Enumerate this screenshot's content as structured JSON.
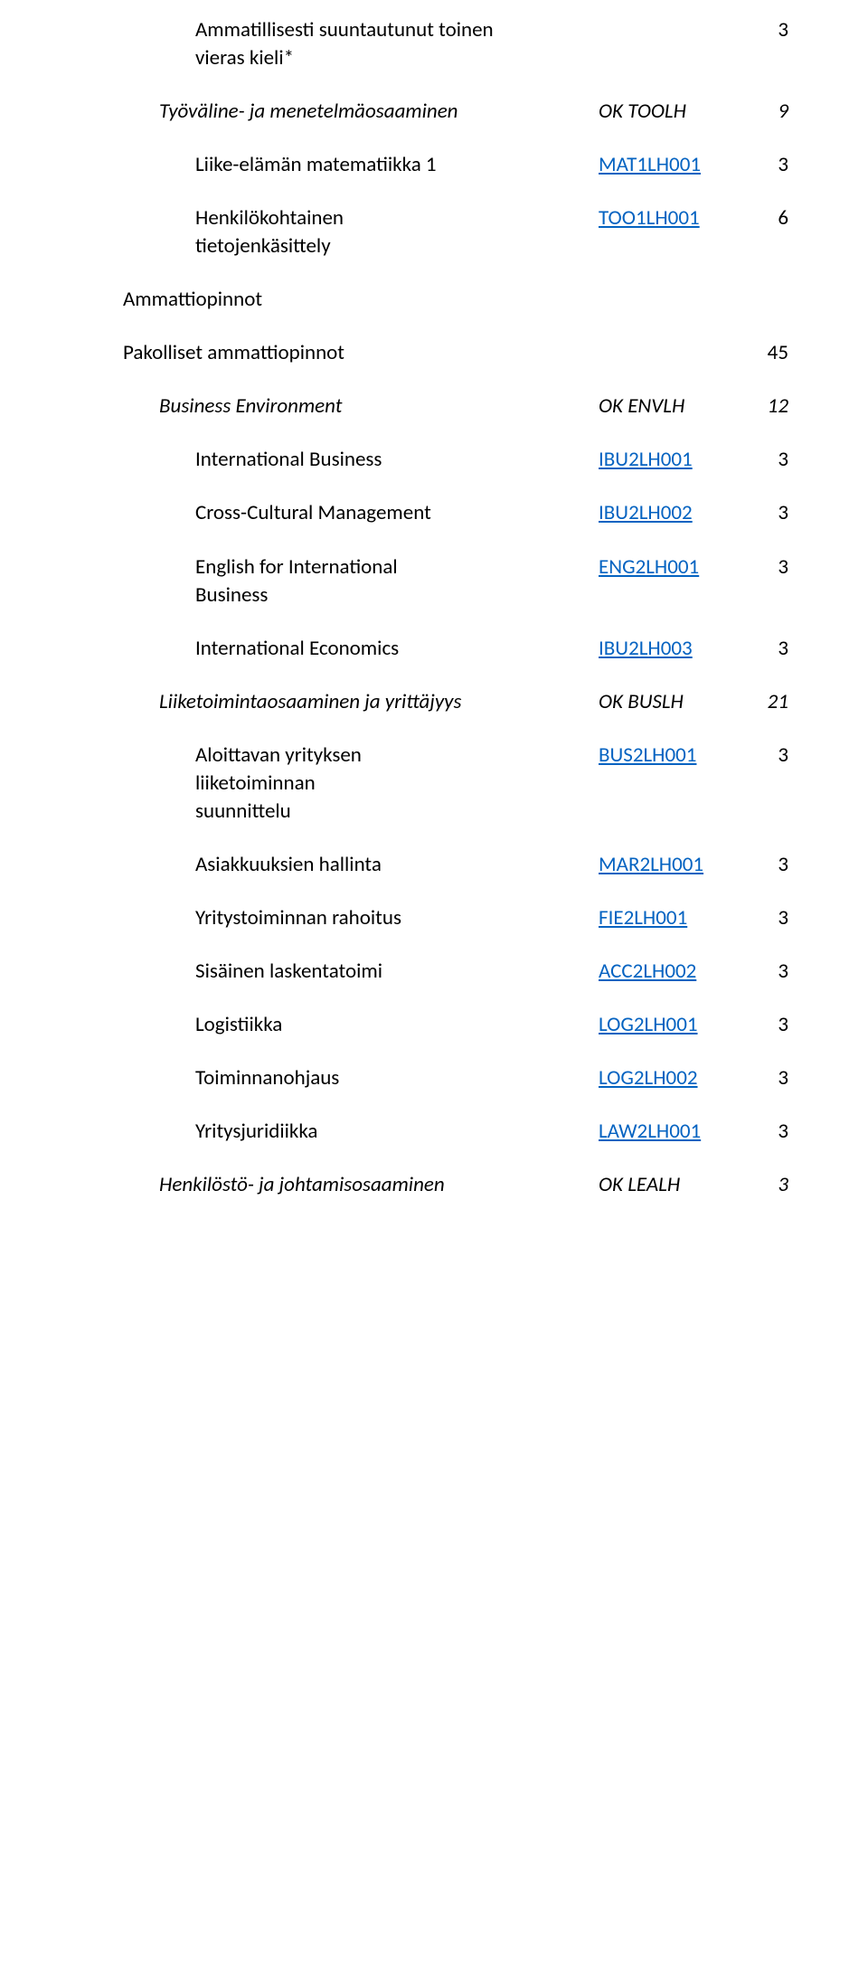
{
  "colors": {
    "text": "#000000",
    "link": "#0563c1",
    "background": "#ffffff"
  },
  "typography": {
    "font_family": "Calibri",
    "font_size_pt": 17
  },
  "rows": [
    {
      "name": "Ammatillisesti suuntautunut toinen\nvieras kieli*",
      "code": "",
      "num": "3",
      "indent": 2,
      "italic": false,
      "link": false
    },
    {
      "gap": true
    },
    {
      "name": "Työväline- ja menetelmäosaaminen",
      "code": "OK TOOLH",
      "num": "9",
      "indent": 1,
      "italic": true,
      "link": false
    },
    {
      "gap": true
    },
    {
      "name": "Liike-elämän matematiikka 1",
      "code": "MAT1LH001",
      "num": "3",
      "indent": 2,
      "italic": false,
      "link": true
    },
    {
      "gap": true
    },
    {
      "name": "Henkilökohtainen\ntietojenkäsittely",
      "code": "TOO1LH001",
      "num": "6",
      "indent": 2,
      "italic": false,
      "link": true
    },
    {
      "gap": true
    },
    {
      "name": "Ammattiopinnot",
      "code": "",
      "num": "",
      "indent": 0,
      "italic": false,
      "link": false
    },
    {
      "gap": true
    },
    {
      "name": "Pakolliset ammattiopinnot",
      "code": "",
      "num": "45",
      "indent": 0,
      "italic": false,
      "link": false
    },
    {
      "gap": true
    },
    {
      "name": "Business Environment",
      "code": "OK ENVLH",
      "num": "12",
      "indent": 1,
      "italic": true,
      "link": false
    },
    {
      "gap": true
    },
    {
      "name": "International Business",
      "code": "IBU2LH001",
      "num": "3",
      "indent": 2,
      "italic": false,
      "link": true
    },
    {
      "gap": true
    },
    {
      "name": "Cross-Cultural Management",
      "code": "IBU2LH002",
      "num": "3",
      "indent": 2,
      "italic": false,
      "link": true
    },
    {
      "gap": true
    },
    {
      "name": "English for International\nBusiness",
      "code": "ENG2LH001",
      "num": "3",
      "indent": 2,
      "italic": false,
      "link": true
    },
    {
      "gap": true
    },
    {
      "name": "International Economics",
      "code": "IBU2LH003",
      "num": "3",
      "indent": 2,
      "italic": false,
      "link": true
    },
    {
      "gap": true
    },
    {
      "name": "Liiketoimintaosaaminen ja yrittäjyys",
      "code": "OK BUSLH",
      "num": "21",
      "indent": 1,
      "italic": true,
      "link": false
    },
    {
      "gap": true
    },
    {
      "name": "Aloittavan yrityksen\nliiketoiminnan\nsuunnittelu",
      "code": "BUS2LH001",
      "num": "3",
      "indent": 2,
      "italic": false,
      "link": true
    },
    {
      "gap": true
    },
    {
      "name": "Asiakkuuksien hallinta",
      "code": "MAR2LH001",
      "num": "3",
      "indent": 2,
      "italic": false,
      "link": true
    },
    {
      "gap": true
    },
    {
      "name": "Yritystoiminnan rahoitus",
      "code": "FIE2LH001",
      "num": "3",
      "indent": 2,
      "italic": false,
      "link": true
    },
    {
      "gap": true
    },
    {
      "name": "Sisäinen laskentatoimi",
      "code": "ACC2LH002",
      "num": "3",
      "indent": 2,
      "italic": false,
      "link": true
    },
    {
      "gap": true
    },
    {
      "name": "Logistiikka",
      "code": "LOG2LH001",
      "num": "3",
      "indent": 2,
      "italic": false,
      "link": true
    },
    {
      "gap": true
    },
    {
      "name": "Toiminnanohjaus",
      "code": "LOG2LH002",
      "num": "3",
      "indent": 2,
      "italic": false,
      "link": true
    },
    {
      "gap": true
    },
    {
      "name": "Yritysjuridiikka",
      "code": "LAW2LH001",
      "num": "3",
      "indent": 2,
      "italic": false,
      "link": true
    },
    {
      "gap": true
    },
    {
      "name": "Henkilöstö- ja johtamisosaaminen",
      "code": "OK LEALH",
      "num": "3",
      "indent": 1,
      "italic": true,
      "link": false
    }
  ]
}
